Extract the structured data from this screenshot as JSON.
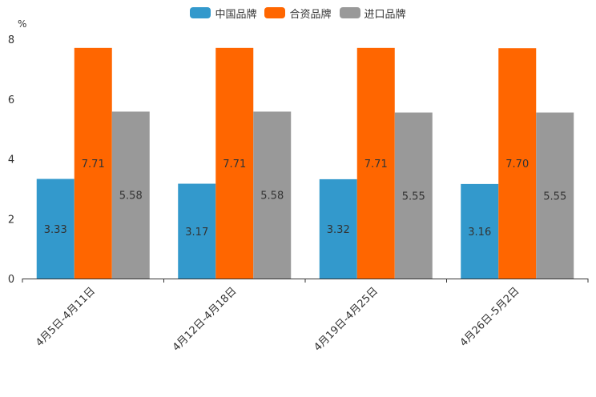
{
  "chart_data": {
    "type": "bar",
    "title": "",
    "unit": "%",
    "categories": [
      "4月5日-4月11日",
      "4月12日-4月18日",
      "4月19日-4月25日",
      "4月26日-5月2日"
    ],
    "series": [
      {
        "name": "中国品牌",
        "color": "#3399cc",
        "values": [
          3.33,
          3.17,
          3.32,
          3.16
        ],
        "labels": [
          "3.33",
          "3.17",
          "3.32",
          "3.16"
        ]
      },
      {
        "name": "合资品牌",
        "color": "#ff6600",
        "values": [
          7.71,
          7.71,
          7.71,
          7.7
        ],
        "labels": [
          "7.71",
          "7.71",
          "7.71",
          "7.70"
        ]
      },
      {
        "name": "进口品牌",
        "color": "#999999",
        "values": [
          5.58,
          5.58,
          5.55,
          5.55
        ],
        "labels": [
          "5.58",
          "5.58",
          "5.55",
          "5.55"
        ]
      }
    ],
    "yticks": [
      "0",
      "2",
      "4",
      "6",
      "8"
    ],
    "ylim": [
      0,
      8
    ],
    "legend_position": "top-center",
    "grid": false
  }
}
